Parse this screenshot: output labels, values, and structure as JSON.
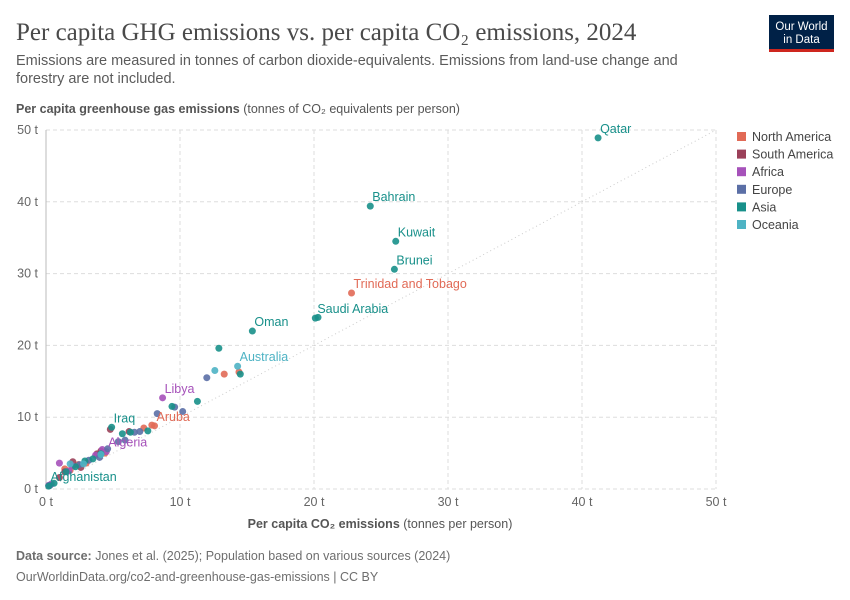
{
  "logo": [
    "Our World",
    "in Data"
  ],
  "chart_data": {
    "type": "scatter",
    "title": "Per capita GHG emissions vs. per capita CO₂ emissions, 2024",
    "subtitle": [
      "Emissions are measured in tonnes of carbon dioxide-equivalents. Emissions from land-use change and",
      "forestry are not included."
    ],
    "ylabel": "Per capita greenhouse gas emissions",
    "ylabel_unit": "(tonnes of CO₂ equivalents per person)",
    "xlabel": "Per capita CO₂ emissions",
    "xlabel_unit": "(tonnes per person)",
    "xlim": [
      0,
      50
    ],
    "ylim": [
      0,
      50
    ],
    "xticks": [
      {
        "value": 0,
        "label": "0 t"
      },
      {
        "value": 10,
        "label": "10 t"
      },
      {
        "value": 20,
        "label": "20 t"
      },
      {
        "value": 30,
        "label": "30 t"
      },
      {
        "value": 40,
        "label": "40 t"
      },
      {
        "value": 50,
        "label": "50 t"
      }
    ],
    "yticks": [
      {
        "value": 0,
        "label": "0 t"
      },
      {
        "value": 10,
        "label": "10 t"
      },
      {
        "value": 20,
        "label": "20 t"
      },
      {
        "value": 30,
        "label": "30 t"
      },
      {
        "value": 40,
        "label": "40 t"
      },
      {
        "value": 50,
        "label": "50 t"
      }
    ],
    "grid": true,
    "legend": "right",
    "series": [
      {
        "name": "North America",
        "color": "#e16a56",
        "x": [
          22.8,
          8.1,
          13.3,
          14.4,
          7.9,
          3.0,
          1.8,
          2.4,
          4.4,
          7.3,
          1.4
        ],
        "y": [
          27.3,
          8.8,
          16.0,
          16.3,
          8.9,
          3.6,
          2.6,
          3.4,
          5.0,
          8.5,
          2.8
        ],
        "labels": [
          "Trinidad and Tobago",
          "Aruba",
          null,
          null,
          null,
          null,
          null,
          null,
          null,
          null,
          null
        ]
      },
      {
        "name": "South America",
        "color": "#9b4059",
        "x": [
          4.8,
          2.0,
          4.1,
          1.4,
          2.6,
          3.8,
          6.2,
          1.0
        ],
        "y": [
          8.3,
          3.8,
          5.3,
          2.4,
          3.0,
          4.9,
          8.0,
          1.6
        ],
        "labels": [
          null,
          null,
          null,
          null,
          null,
          null,
          null,
          null
        ]
      },
      {
        "name": "Africa",
        "color": "#a652ba",
        "x": [
          8.7,
          4.5,
          1.0,
          4.2,
          0.2,
          1.7,
          2.0,
          0.4,
          3.7
        ],
        "y": [
          12.7,
          5.2,
          3.6,
          5.5,
          0.5,
          2.5,
          3.2,
          0.7,
          4.7
        ],
        "labels": [
          "Libya",
          "Algeria",
          null,
          null,
          null,
          null,
          null,
          null,
          null
        ]
      },
      {
        "name": "Europe",
        "color": "#5b6fa6",
        "x": [
          9.6,
          12.0,
          10.2,
          7.0,
          5.4,
          4.6,
          3.2,
          6.6,
          8.3,
          5.9,
          0.3,
          2.5,
          4.0
        ],
        "y": [
          11.4,
          15.5,
          10.8,
          8.0,
          6.6,
          5.6,
          4.0,
          7.9,
          10.5,
          6.8,
          0.5,
          3.4,
          4.4
        ],
        "labels": [
          null,
          null,
          null,
          null,
          null,
          null,
          null,
          null,
          null,
          null,
          null,
          null,
          null
        ]
      },
      {
        "name": "Asia",
        "color": "#18908a",
        "x": [
          41.2,
          24.2,
          26.1,
          26.0,
          20.1,
          15.4,
          4.9,
          0.2,
          12.9,
          11.3,
          20.3,
          14.5,
          9.4,
          6.3,
          3.5,
          2.2,
          4.1,
          1.5,
          7.6,
          0.6,
          2.9,
          5.7
        ],
        "y": [
          48.9,
          39.4,
          34.5,
          30.6,
          23.8,
          22.0,
          8.6,
          0.4,
          19.6,
          12.2,
          23.9,
          16.0,
          11.5,
          7.9,
          4.2,
          3.1,
          4.9,
          2.4,
          8.1,
          0.8,
          3.9,
          7.7
        ],
        "labels": [
          "Qatar",
          "Bahrain",
          "Kuwait",
          "Brunei",
          "Saudi Arabia",
          "Oman",
          "Iraq",
          "Afghanistan",
          null,
          null,
          null,
          null,
          null,
          null,
          null,
          null,
          null,
          null,
          null,
          null,
          null,
          null
        ]
      },
      {
        "name": "Oceania",
        "color": "#4eb3c4",
        "x": [
          14.3,
          12.6,
          4.1,
          1.8,
          2.8
        ],
        "y": [
          17.1,
          16.5,
          4.8,
          3.5,
          3.5
        ],
        "labels": [
          "Australia",
          null,
          null,
          null,
          null
        ]
      }
    ]
  },
  "footer": {
    "source_label": "Data source:",
    "source": "Jones et al. (2025); Population based on various sources (2024)",
    "url": "OurWorldinData.org/co2-and-greenhouse-gas-emissions | CC BY"
  }
}
